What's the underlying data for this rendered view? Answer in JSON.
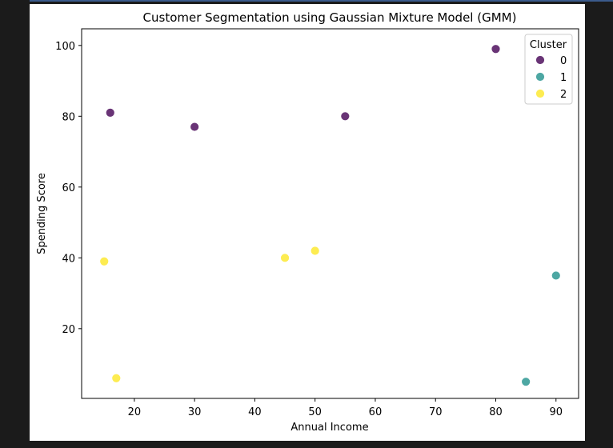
{
  "chart_data": {
    "type": "scatter",
    "title": "Customer Segmentation using Gaussian Mixture Model (GMM)",
    "xlabel": "Annual Income",
    "ylabel": "Spending Score",
    "xlim": [
      11.25,
      93.75
    ],
    "ylim": [
      0.3,
      104.7
    ],
    "xticks": [
      20,
      30,
      40,
      50,
      60,
      70,
      80,
      90
    ],
    "yticks": [
      20,
      40,
      60,
      80,
      100
    ],
    "grid": false,
    "legend": {
      "title": "Cluster",
      "position": "top-right"
    },
    "series": [
      {
        "name": "0",
        "color": "#440154",
        "points": [
          {
            "x": 16,
            "y": 81
          },
          {
            "x": 30,
            "y": 77
          },
          {
            "x": 55,
            "y": 80
          },
          {
            "x": 80,
            "y": 99
          }
        ]
      },
      {
        "name": "1",
        "color": "#21918c",
        "points": [
          {
            "x": 90,
            "y": 35
          },
          {
            "x": 85,
            "y": 5
          }
        ]
      },
      {
        "name": "2",
        "color": "#fde725",
        "points": [
          {
            "x": 15,
            "y": 39
          },
          {
            "x": 17,
            "y": 6
          },
          {
            "x": 45,
            "y": 40
          },
          {
            "x": 50,
            "y": 42
          }
        ]
      }
    ]
  }
}
